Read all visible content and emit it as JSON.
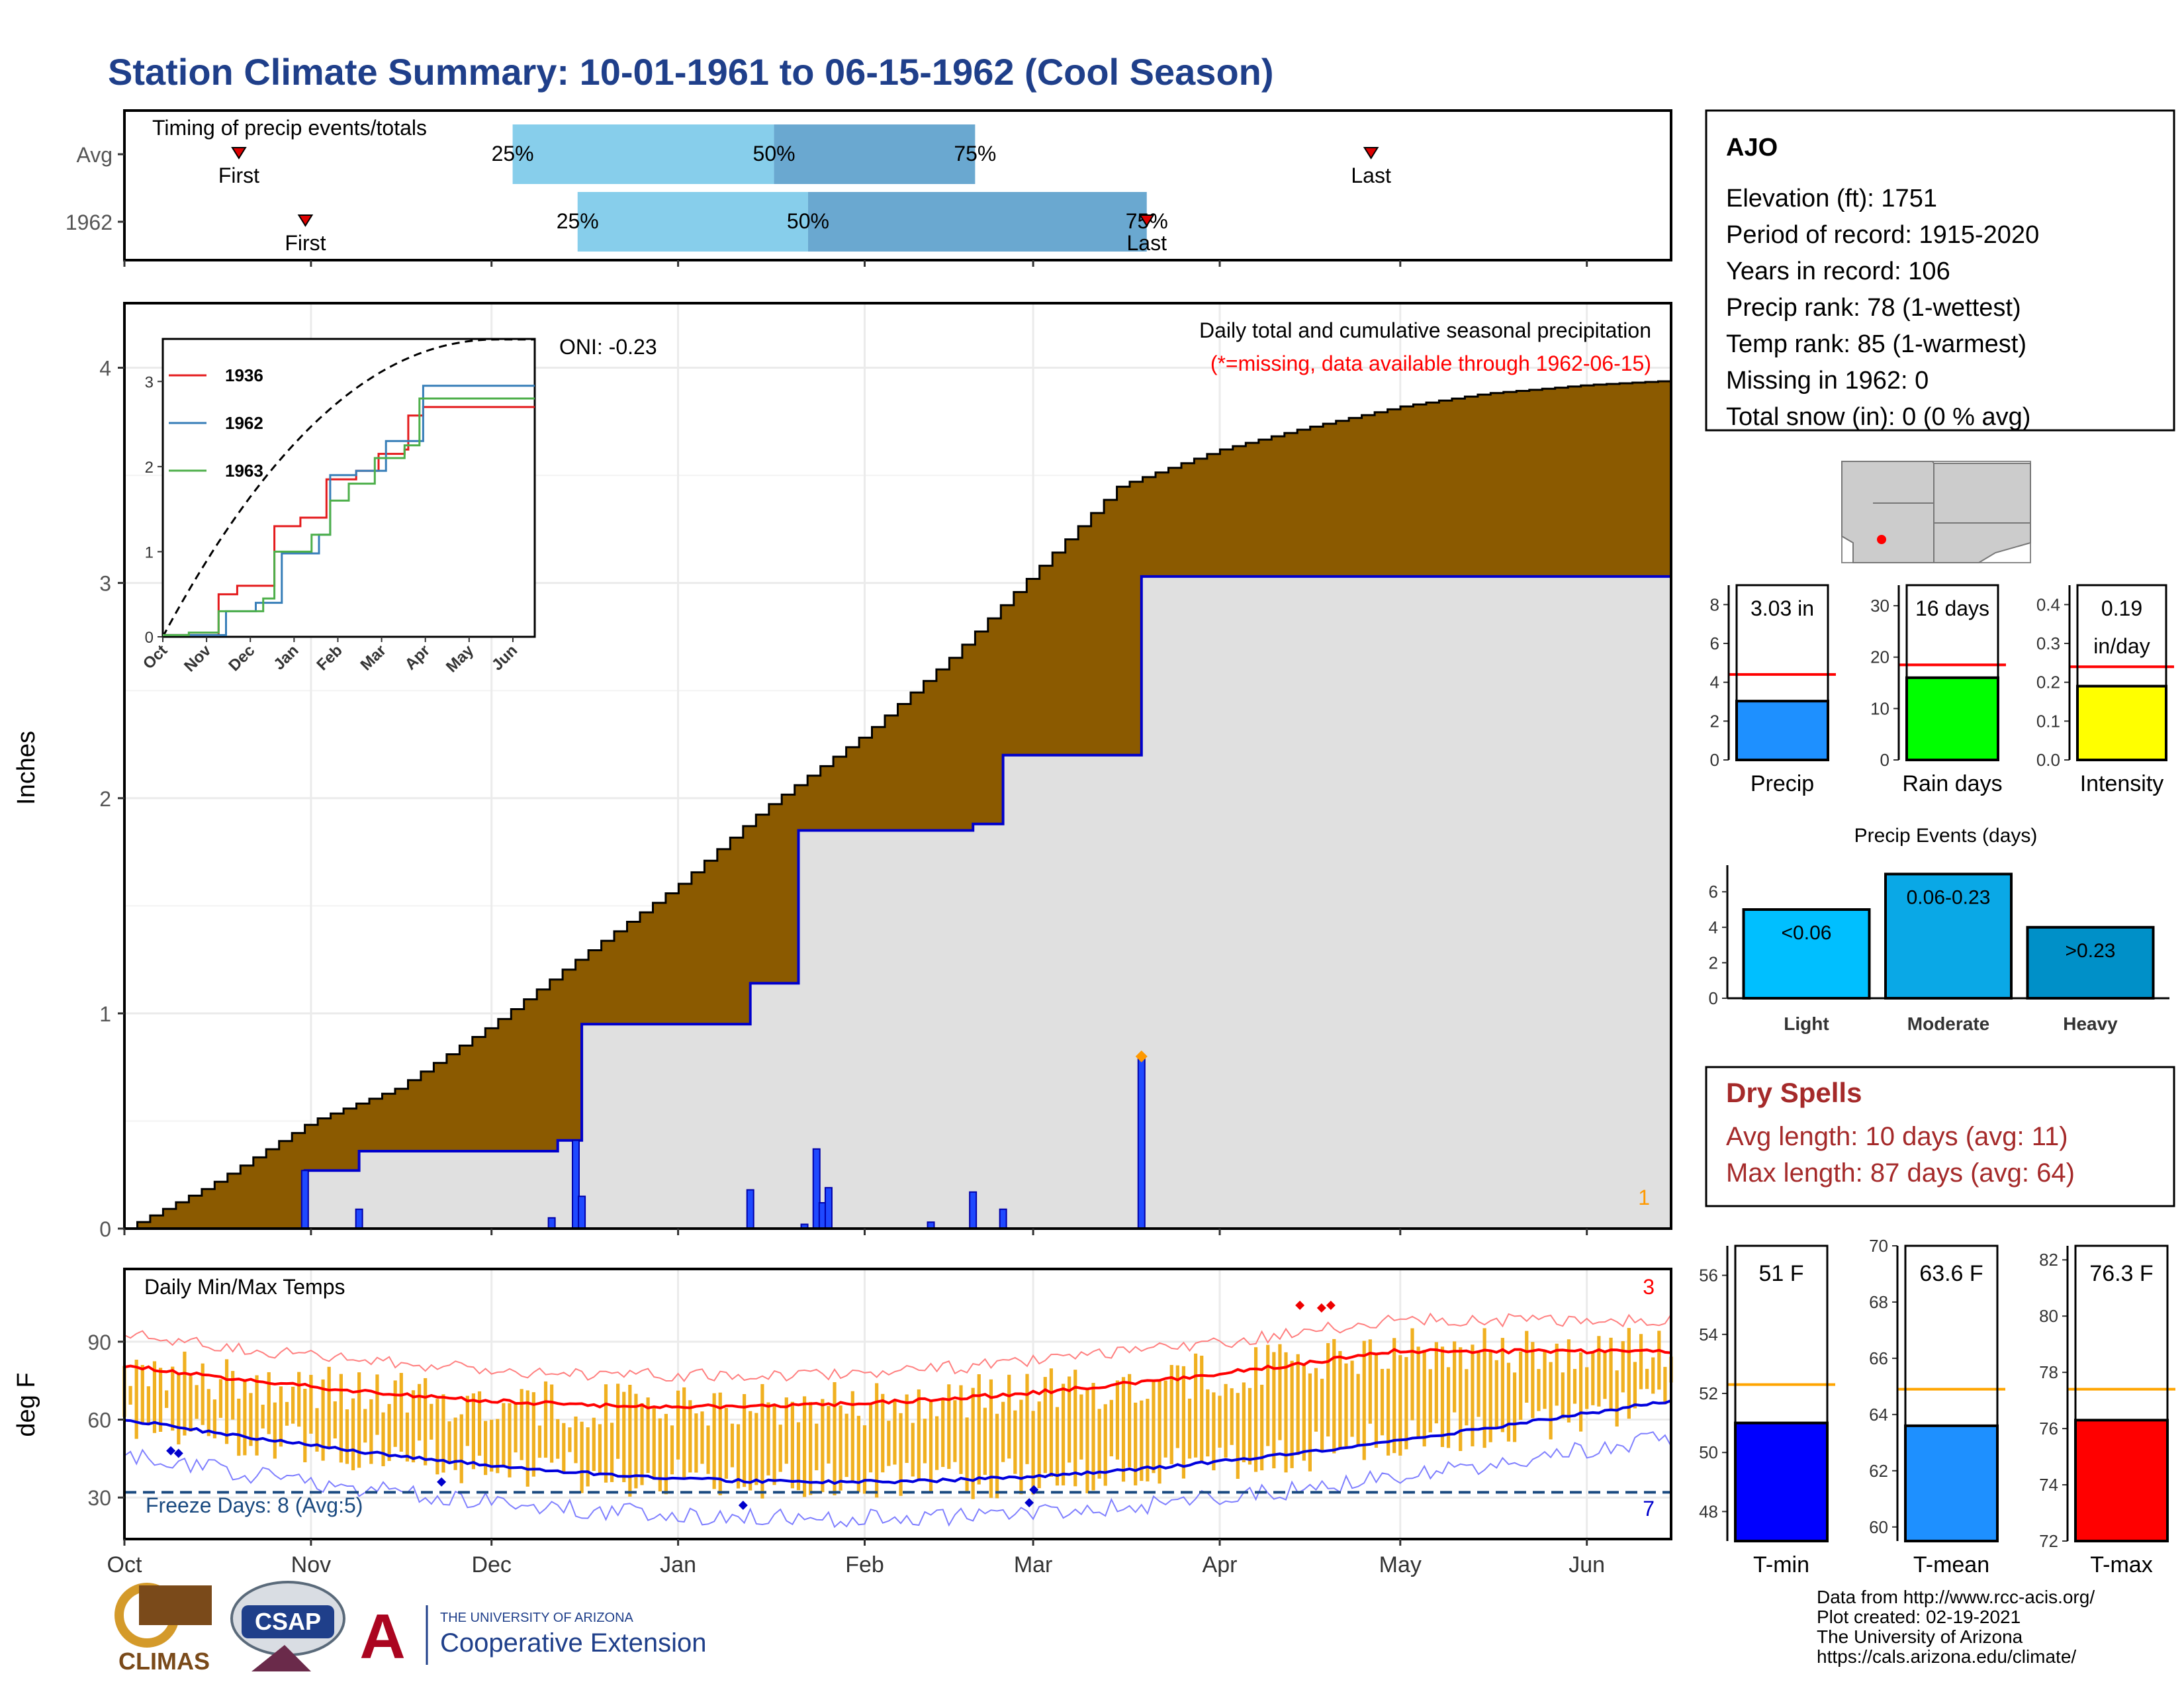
{
  "title": "Station Climate Summary: 10-01-1961 to 06-15-1962 (Cool Season)",
  "timing": {
    "title": "Timing of precip events/totals",
    "rows": [
      {
        "label": "Avg",
        "first": "First",
        "last": "Last",
        "first_pos": 0.074,
        "last_pos": 0.806,
        "q25": 0.251,
        "q50": 0.42,
        "q75": 0.55
      },
      {
        "label": "1962",
        "first": "First",
        "last": "Last",
        "first_pos": 0.117,
        "last_pos": 0.661,
        "q25": 0.293,
        "q50": 0.442,
        "q75": 0.661
      }
    ],
    "p25": "25%",
    "p50": "50%",
    "p75": "75%"
  },
  "main": {
    "ylabel": "Inches",
    "yticks": [
      "0",
      "1",
      "2",
      "3",
      "4"
    ],
    "ymax": 4.3,
    "oni": "ONI: -0.23",
    "subtitle": "Daily total and cumulative seasonal precipitation",
    "missing_note": "(*=missing, data available through 1962-06-15)",
    "missing_count": "1",
    "months": [
      "Oct",
      "Nov",
      "Dec",
      "Jan",
      "Feb",
      "Mar",
      "Apr",
      "May",
      "Jun"
    ],
    "colors": {
      "avg_fill": "#8B5A00",
      "obs_fill": "#e0e0e0",
      "obs_line": "#0000cc",
      "bars": "#1f49ff",
      "max_point": "#ff9900"
    }
  },
  "inset": {
    "series": [
      {
        "name": "1936",
        "color": "#e41a1c"
      },
      {
        "name": "1962",
        "color": "#377eb8"
      },
      {
        "name": "1963",
        "color": "#4daf4a"
      }
    ],
    "yticks": [
      "0",
      "1",
      "2",
      "3"
    ],
    "months": [
      "Oct",
      "Nov",
      "Dec",
      "Jan",
      "Feb",
      "Mar",
      "Apr",
      "May",
      "Jun"
    ]
  },
  "temps": {
    "title": "Daily Min/Max Temps",
    "ylabel": "deg F",
    "yticks": [
      "30",
      "60",
      "90"
    ],
    "freeze": "Freeze Days: 8 (Avg:5)",
    "max_records": "3",
    "min_records": "7",
    "colors": {
      "bars": "#f0b020",
      "avg_max": "#ff0000",
      "avg_min": "#0000dd",
      "rec_max": "#ff8080",
      "rec_min": "#8080ff",
      "freeze": "#1a4a80"
    }
  },
  "station": {
    "name": "AJO",
    "lines": [
      "Elevation (ft): 1751",
      "Period of record: 1915-2020",
      "Years in record: 106",
      "Precip rank: 78 (1-wettest)",
      "Temp rank: 85 (1-warmest)",
      "Missing in 1962: 0",
      "Total snow (in): 0 (0 % avg)"
    ]
  },
  "precip_bars": [
    {
      "label": "Precip",
      "value_text": "3.03 in",
      "value": 3.03,
      "avg": 4.4,
      "max": 9,
      "ticks": [
        "0",
        "2",
        "4",
        "6",
        "8"
      ],
      "tickvals": [
        0,
        2,
        4,
        6,
        8
      ],
      "color": "#1e90ff"
    },
    {
      "label": "Rain days",
      "value_text": "16 days",
      "value": 16,
      "avg": 18.5,
      "max": 34,
      "ticks": [
        "0",
        "10",
        "20",
        "30"
      ],
      "tickvals": [
        0,
        10,
        20,
        30
      ],
      "color": "#00ff00"
    },
    {
      "label": "Intensity",
      "value_text": "0.19",
      "value_text2": "in/day",
      "value": 0.19,
      "avg": 0.24,
      "max": 0.45,
      "ticks": [
        "0.0",
        "0.1",
        "0.2",
        "0.3",
        "0.4"
      ],
      "tickvals": [
        0,
        0.1,
        0.2,
        0.3,
        0.4
      ],
      "color": "#ffff00"
    }
  ],
  "events": {
    "title": "Precip Events (days)",
    "ticks": [
      "0",
      "2",
      "4",
      "6"
    ],
    "bars": [
      {
        "label": "Light",
        "text": "<0.06",
        "value": 5,
        "color": "#00bfff"
      },
      {
        "label": "Moderate",
        "text": "0.06-0.23",
        "value": 7,
        "color": "#0aa8e6"
      },
      {
        "label": "Heavy",
        "text": ">0.23",
        "value": 4,
        "color": "#0090c8"
      }
    ]
  },
  "dry_spells": {
    "title": "Dry Spells",
    "avg": "Avg length: 10 days (avg: 11)",
    "max": "Max length: 87 days (avg: 64)"
  },
  "temp_bars": [
    {
      "label": "T-min",
      "value_text": "51 F",
      "value": 51,
      "avg": 52.3,
      "min": 47,
      "max": 57,
      "ticks": [
        "48",
        "50",
        "52",
        "54",
        "56"
      ],
      "tickvals": [
        48,
        50,
        52,
        54,
        56
      ],
      "color": "#0000ff"
    },
    {
      "label": "T-mean",
      "value_text": "63.6 F",
      "value": 63.6,
      "avg": 64.9,
      "min": 59.5,
      "max": 70,
      "ticks": [
        "60",
        "62",
        "64",
        "66",
        "68",
        "70"
      ],
      "tickvals": [
        60,
        62,
        64,
        66,
        68,
        70
      ],
      "color": "#1e90ff"
    },
    {
      "label": "T-max",
      "value_text": "76.3 F",
      "value": 76.3,
      "avg": 77.4,
      "min": 72,
      "max": 82.5,
      "ticks": [
        "72",
        "74",
        "76",
        "78",
        "80",
        "82"
      ],
      "tickvals": [
        72,
        74,
        76,
        78,
        80,
        82
      ],
      "color": "#ff0000"
    }
  ],
  "footer": {
    "lines": [
      "Data from http://www.rcc-acis.org/",
      "Plot created: 02-19-2021",
      "The University of Arizona",
      "https://cals.arizona.edu/climate/"
    ],
    "logo_climas": "CLIMAS",
    "logo_csap": "CSAP",
    "logo_ua_small": "THE UNIVERSITY OF ARIZONA",
    "logo_ua": "Cooperative Extension"
  },
  "chart_data": {
    "type": "area",
    "title": "Station Climate Summary: 10-01-1961 to 06-15-1962 (Cool Season)",
    "ylabel": "Inches",
    "ylim": [
      0,
      4.3
    ],
    "xlabel": "",
    "x_range": [
      "1961-10-01",
      "1962-06-15"
    ],
    "series": [
      {
        "name": "avg_cumulative",
        "x": [
          "1961-10-01",
          "1961-10-15",
          "1961-11-01",
          "1961-11-15",
          "1961-12-01",
          "1961-12-15",
          "1962-01-01",
          "1962-01-15",
          "1962-02-01",
          "1962-02-15",
          "1962-03-01",
          "1962-03-15",
          "1962-04-01",
          "1962-04-15",
          "1962-05-01",
          "1962-05-15",
          "1962-06-01",
          "1962-06-15"
        ],
        "values": [
          0.0,
          0.2,
          0.5,
          0.65,
          0.95,
          1.25,
          1.6,
          1.95,
          2.3,
          2.65,
          3.05,
          3.45,
          3.62,
          3.72,
          3.82,
          3.88,
          3.92,
          3.94
        ]
      },
      {
        "name": "1962_cumulative",
        "x": [
          "1961-10-01",
          "1961-10-31",
          "1961-11-09",
          "1961-12-12",
          "1961-12-16",
          "1962-01-13",
          "1962-01-21",
          "1962-02-19",
          "1962-02-24",
          "1962-03-19",
          "1962-06-15"
        ],
        "values": [
          0.0,
          0.27,
          0.36,
          0.41,
          0.95,
          1.14,
          1.85,
          1.88,
          2.2,
          3.03,
          3.03
        ]
      },
      {
        "name": "daily_precip",
        "x": [
          "1961-10-31",
          "1961-11-09",
          "1961-12-11",
          "1961-12-15",
          "1961-12-16",
          "1962-01-13",
          "1962-01-22",
          "1962-01-24",
          "1962-01-25",
          "1962-01-26",
          "1962-02-12",
          "1962-02-19",
          "1962-02-24",
          "1962-03-19"
        ],
        "values": [
          0.27,
          0.09,
          0.05,
          0.41,
          0.15,
          0.18,
          0.02,
          0.37,
          0.12,
          0.19,
          0.03,
          0.17,
          0.09,
          0.8
        ]
      }
    ],
    "oni": -0.23
  }
}
